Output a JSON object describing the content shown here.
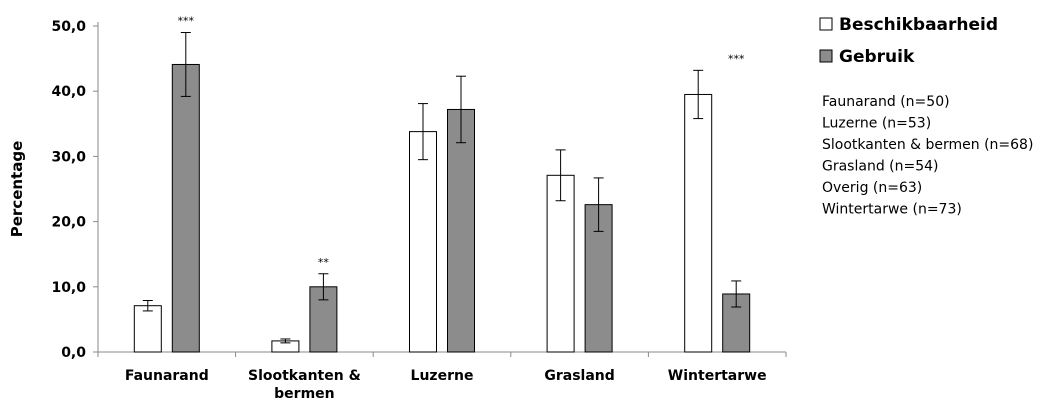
{
  "chart_data": {
    "type": "bar",
    "title": "",
    "xlabel": "",
    "ylabel": "Percentage",
    "ylim": [
      0,
      50
    ],
    "y_ticks": [
      "0,0",
      "10,0",
      "20,0",
      "30,0",
      "40,0",
      "50,0"
    ],
    "categories": [
      [
        "Faunarand"
      ],
      [
        "Slootkanten &",
        "bermen"
      ],
      [
        "Luzerne"
      ],
      [
        "Grasland"
      ],
      [
        "Wintertarwe"
      ]
    ],
    "series": [
      {
        "name": "Beschikbaarheid",
        "color": "#ffffff",
        "values": [
          7.1,
          1.7,
          33.8,
          27.1,
          39.5
        ],
        "error": [
          0.8,
          0.3,
          4.3,
          3.9,
          3.7
        ]
      },
      {
        "name": "Gebruik",
        "color": "#8c8c8c",
        "values": [
          44.1,
          10.0,
          37.2,
          22.6,
          8.9
        ],
        "error": [
          4.9,
          2.0,
          5.1,
          4.1,
          2.0
        ]
      }
    ],
    "significance": [
      "***",
      "**",
      "",
      "",
      "***"
    ],
    "legend": {
      "position": "right",
      "entries": [
        "Beschikbaarheid",
        "Gebruik"
      ]
    },
    "notes": [
      "Faunarand (n=50)",
      "Luzerne (n=53)",
      "Slootkanten & bermen (n=68)",
      "Grasland (n=54)",
      "Overig (n=63)",
      "Wintertarwe (n=73)"
    ],
    "grid": false
  }
}
